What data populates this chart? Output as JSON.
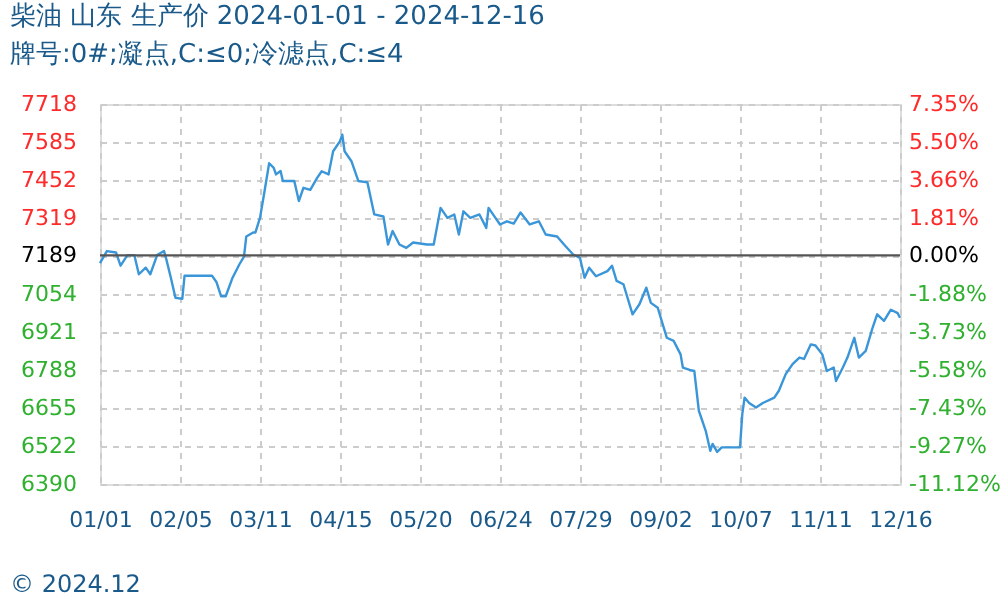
{
  "chart_data": {
    "type": "line",
    "title": "柴油 山东 生产价 2024-01-01 - 2024-12-16",
    "subtitle": "牌号:0#;凝点,C:≤0;冷滤点,C:≤4",
    "x": [
      "2024-01-01",
      "2024-01-04",
      "2024-01-08",
      "2024-01-10",
      "2024-01-13",
      "2024-01-16",
      "2024-01-18",
      "2024-01-21",
      "2024-01-23",
      "2024-01-26",
      "2024-01-29",
      "2024-01-30",
      "2024-02-01",
      "2024-02-03",
      "2024-02-06",
      "2024-02-07",
      "2024-02-19",
      "2024-02-21",
      "2024-02-23",
      "2024-02-25",
      "2024-02-28",
      "2024-03-02",
      "2024-03-04",
      "2024-03-05",
      "2024-03-08",
      "2024-03-09",
      "2024-03-11",
      "2024-03-13",
      "2024-03-15",
      "2024-03-17",
      "2024-03-18",
      "2024-03-20",
      "2024-03-21",
      "2024-03-26",
      "2024-03-28",
      "2024-03-30",
      "2024-04-02",
      "2024-04-05",
      "2024-04-07",
      "2024-04-10",
      "2024-04-12",
      "2024-04-15",
      "2024-04-16",
      "2024-04-17",
      "2024-04-20",
      "2024-04-23",
      "2024-04-27",
      "2024-04-30",
      "2024-05-04",
      "2024-05-06",
      "2024-05-08",
      "2024-05-11",
      "2024-05-14",
      "2024-05-17",
      "2024-05-23",
      "2024-05-26",
      "2024-05-29",
      "2024-06-01",
      "2024-06-04",
      "2024-06-06",
      "2024-06-08",
      "2024-06-11",
      "2024-06-15",
      "2024-06-18",
      "2024-06-19",
      "2024-06-22",
      "2024-06-24",
      "2024-06-27",
      "2024-06-30",
      "2024-07-03",
      "2024-07-07",
      "2024-07-11",
      "2024-07-14",
      "2024-07-19",
      "2024-07-22",
      "2024-07-26",
      "2024-07-29",
      "2024-07-31",
      "2024-08-02",
      "2024-08-05",
      "2024-08-10",
      "2024-08-12",
      "2024-08-14",
      "2024-08-17",
      "2024-08-21",
      "2024-08-24",
      "2024-08-27",
      "2024-08-29",
      "2024-09-01",
      "2024-09-05",
      "2024-09-08",
      "2024-09-11",
      "2024-09-12",
      "2024-09-15",
      "2024-09-17",
      "2024-09-19",
      "2024-09-22",
      "2024-09-24",
      "2024-09-25",
      "2024-09-27",
      "2024-09-29",
      "2024-10-07",
      "2024-10-08",
      "2024-10-09",
      "2024-10-11",
      "2024-10-14",
      "2024-10-17",
      "2024-10-22",
      "2024-10-24",
      "2024-10-27",
      "2024-10-30",
      "2024-11-02",
      "2024-11-04",
      "2024-11-07",
      "2024-11-09",
      "2024-11-12",
      "2024-11-14",
      "2024-11-17",
      "2024-11-18",
      "2024-11-21",
      "2024-11-23",
      "2024-11-26",
      "2024-11-28",
      "2024-12-01",
      "2024-12-04",
      "2024-12-06",
      "2024-12-09",
      "2024-12-12",
      "2024-12-15",
      "2024-12-16"
    ],
    "series": [
      {
        "color": "#3a96d8",
        "values": [
          7162,
          7204,
          7199,
          7153,
          7190,
          7190,
          7123,
          7146,
          7123,
          7190,
          7204,
          7176,
          7111,
          7041,
          7037,
          7118,
          7118,
          7095,
          7046,
          7046,
          7111,
          7158,
          7185,
          7255,
          7269,
          7269,
          7320,
          7414,
          7511,
          7495,
          7472,
          7484,
          7449,
          7449,
          7379,
          7425,
          7418,
          7460,
          7483,
          7472,
          7553,
          7588,
          7611,
          7553,
          7518,
          7449,
          7444,
          7332,
          7325,
          7227,
          7274,
          7227,
          7215,
          7234,
          7227,
          7227,
          7355,
          7320,
          7332,
          7262,
          7343,
          7320,
          7332,
          7285,
          7355,
          7320,
          7297,
          7308,
          7300,
          7339,
          7297,
          7308,
          7262,
          7255,
          7227,
          7192,
          7180,
          7111,
          7146,
          7116,
          7134,
          7153,
          7100,
          7088,
          6983,
          7018,
          7076,
          7023,
          7006,
          6901,
          6890,
          6843,
          6797,
          6789,
          6785,
          6646,
          6576,
          6506,
          6530,
          6502,
          6518,
          6518,
          6634,
          6692,
          6673,
          6657,
          6673,
          6692,
          6716,
          6774,
          6809,
          6832,
          6827,
          6878,
          6874,
          6843,
          6785,
          6797,
          6750,
          6797,
          6832,
          6901,
          6832,
          6855,
          6936,
          6983,
          6960,
          6999,
          6987,
          6971
        ]
      }
    ],
    "xlim": [
      "2024-01-01",
      "2024-12-16"
    ],
    "xticks": [
      {
        "value": "2024-01-01",
        "label": "01/01"
      },
      {
        "value": "2024-02-05",
        "label": "02/05"
      },
      {
        "value": "2024-03-11",
        "label": "03/11"
      },
      {
        "value": "2024-04-15",
        "label": "04/15"
      },
      {
        "value": "2024-05-20",
        "label": "05/20"
      },
      {
        "value": "2024-06-24",
        "label": "06/24"
      },
      {
        "value": "2024-07-29",
        "label": "07/29"
      },
      {
        "value": "2024-09-02",
        "label": "09/02"
      },
      {
        "value": "2024-10-07",
        "label": "10/07"
      },
      {
        "value": "2024-11-11",
        "label": "11/11"
      },
      {
        "value": "2024-12-16",
        "label": "12/16"
      }
    ],
    "ylim": [
      6390,
      7718
    ],
    "yticks": [
      6390,
      6522,
      6655,
      6788,
      6921,
      7054,
      7189,
      7319,
      7452,
      7585,
      7718
    ],
    "y2lim": [
      -11.12,
      7.35
    ],
    "y2ticks": [
      {
        "value": -11.12,
        "label": "-11.12%"
      },
      {
        "value": -9.27,
        "label": "-9.27%"
      },
      {
        "value": -7.43,
        "label": "-7.43%"
      },
      {
        "value": -5.58,
        "label": "-5.58%"
      },
      {
        "value": -3.73,
        "label": "-3.73%"
      },
      {
        "value": -1.88,
        "label": "-1.88%"
      },
      {
        "value": 0,
        "label": "0.00%"
      },
      {
        "value": 1.81,
        "label": "1.81%"
      },
      {
        "value": 3.66,
        "label": "3.66%"
      },
      {
        "value": 5.5,
        "label": "5.50%"
      },
      {
        "value": 7.35,
        "label": "7.35%"
      }
    ],
    "ref_lines": [
      {
        "axis": "y",
        "value": 7189,
        "color": "#555555"
      }
    ],
    "annotations": [
      "© 2024.12"
    ],
    "grid": true,
    "legend": false,
    "marker": "none",
    "line_style": "solid"
  }
}
